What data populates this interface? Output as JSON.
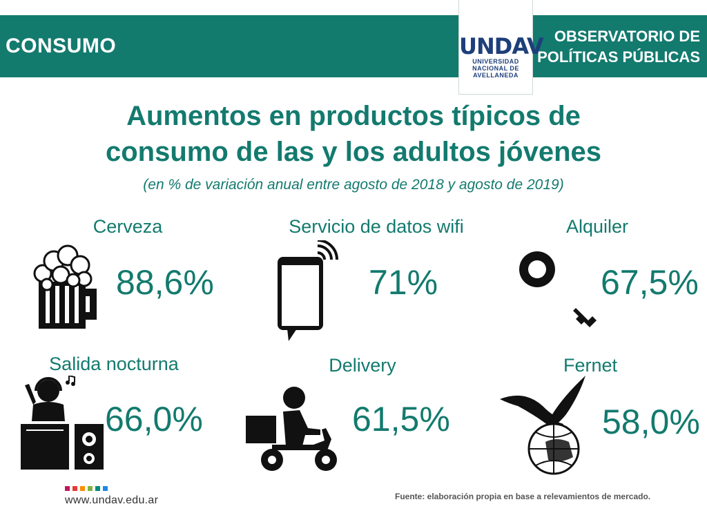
{
  "header": {
    "section": "CONSUMO",
    "observatory_line1": "OBSERVATORIO DE",
    "observatory_line2": "POLÍTICAS PÚBLICAS",
    "logo_word": "UNDAV",
    "logo_line1": "UNIVERSIDAD",
    "logo_line2": "NACIONAL DE",
    "logo_line3": "AVELLANEDA"
  },
  "title_line1": "Aumentos en productos típicos de",
  "title_line2": "consumo de las y los adultos jóvenes",
  "subtitle": "(en % de variación anual entre agosto de 2018 y agosto de 2019)",
  "items": [
    {
      "label": "Cerveza",
      "value": "88,6%",
      "icon": "beer-mug-icon"
    },
    {
      "label": "Servicio de datos wifi",
      "value": "71%",
      "icon": "smartphone-wifi-icon"
    },
    {
      "label": "Alquiler",
      "value": "67,5%",
      "icon": "key-icon"
    },
    {
      "label": "Salida nocturna",
      "value": "66,0%",
      "icon": "dj-icon"
    },
    {
      "label": "Delivery",
      "value": "61,5%",
      "icon": "delivery-scooter-icon"
    },
    {
      "label": "Fernet",
      "value": "58,0%",
      "icon": "eagle-globe-icon"
    }
  ],
  "footer": {
    "url": "www.undav.edu.ar",
    "source": "Fuente: elaboración propia en base a relevamientos de mercado.",
    "dot_colors": [
      "#c2185b",
      "#e53935",
      "#fb8c00",
      "#7cb342",
      "#00897b",
      "#1e88e5"
    ]
  },
  "colors": {
    "accent": "#137a6e",
    "logo": "#1d3f7a"
  }
}
